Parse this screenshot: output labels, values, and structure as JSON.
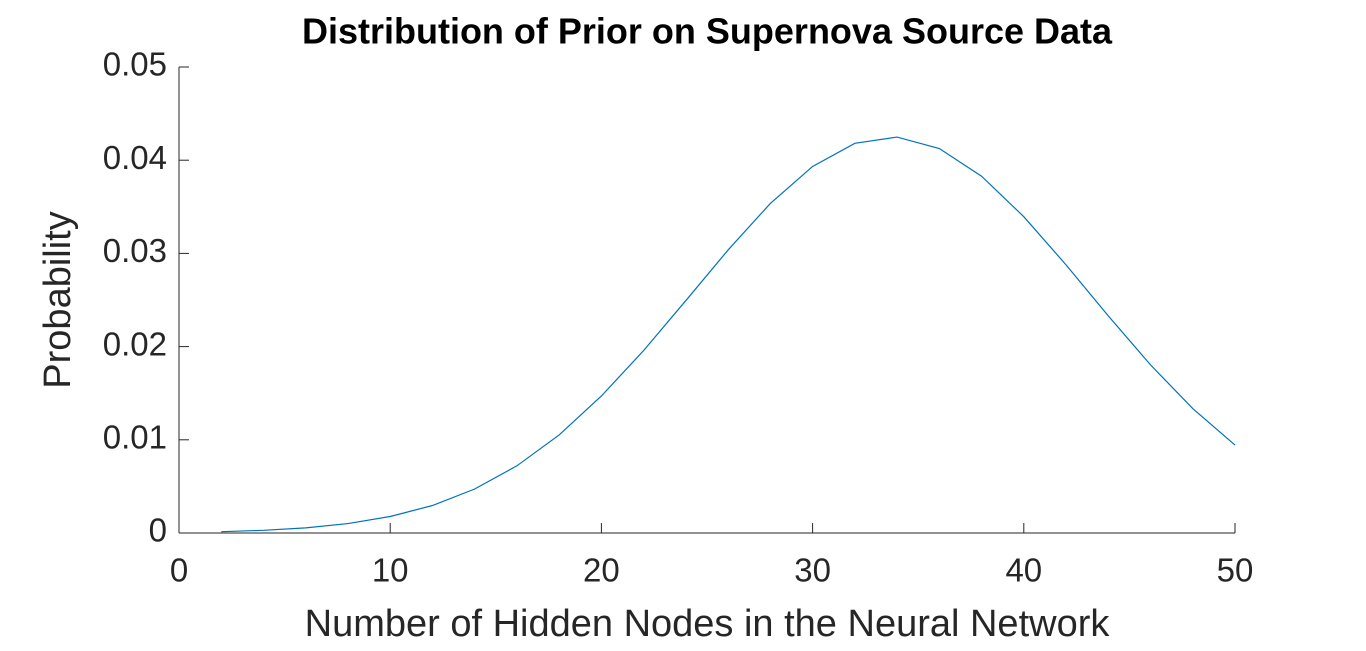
{
  "chart_data": {
    "type": "line",
    "title": "Distribution of Prior on Supernova Source Data",
    "x_label": "Number of Hidden Nodes in the Neural Network",
    "y_label": "Probability",
    "x": [
      2,
      4,
      6,
      8,
      10,
      12,
      14,
      16,
      18,
      20,
      22,
      24,
      26,
      28,
      30,
      32,
      34,
      36,
      38,
      40,
      42,
      44,
      46,
      48,
      50
    ],
    "series": [
      {
        "color": "#0072bd",
        "values": [
          0.00014,
          0.00029,
          0.00055,
          0.00101,
          0.00177,
          0.00295,
          0.00472,
          0.00721,
          0.01052,
          0.0147,
          0.01958,
          0.02494,
          0.03037,
          0.03536,
          0.03933,
          0.04181,
          0.04248,
          0.04125,
          0.03828,
          0.03394,
          0.02877,
          0.0233,
          0.01804,
          0.01335,
          0.00944
        ]
      }
    ],
    "xlim": [
      0,
      50
    ],
    "xticks": [
      0,
      10,
      20,
      30,
      40,
      50
    ],
    "ylim": [
      0,
      0.05
    ],
    "yticks": [
      0,
      0.01,
      0.02,
      0.03,
      0.04,
      0.05
    ]
  }
}
